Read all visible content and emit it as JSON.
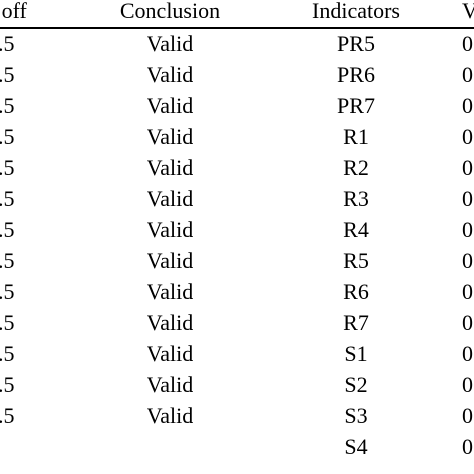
{
  "table": {
    "headers": [
      "t off",
      "Conclusion",
      "Indicators",
      "V"
    ],
    "rows": [
      {
        "cutoff": ".5",
        "conclusion": "Valid",
        "indicator": "PR5",
        "value": "0"
      },
      {
        "cutoff": ".5",
        "conclusion": "Valid",
        "indicator": "PR6",
        "value": "0"
      },
      {
        "cutoff": ".5",
        "conclusion": "Valid",
        "indicator": "PR7",
        "value": "0"
      },
      {
        "cutoff": ".5",
        "conclusion": "Valid",
        "indicator": "R1",
        "value": "0"
      },
      {
        "cutoff": ".5",
        "conclusion": "Valid",
        "indicator": "R2",
        "value": "0"
      },
      {
        "cutoff": ".5",
        "conclusion": "Valid",
        "indicator": "R3",
        "value": "0"
      },
      {
        "cutoff": ".5",
        "conclusion": "Valid",
        "indicator": "R4",
        "value": "0"
      },
      {
        "cutoff": ".5",
        "conclusion": "Valid",
        "indicator": "R5",
        "value": "0"
      },
      {
        "cutoff": ".5",
        "conclusion": "Valid",
        "indicator": "R6",
        "value": "0"
      },
      {
        "cutoff": ".5",
        "conclusion": "Valid",
        "indicator": "R7",
        "value": "0"
      },
      {
        "cutoff": ".5",
        "conclusion": "Valid",
        "indicator": "S1",
        "value": "0"
      },
      {
        "cutoff": ".5",
        "conclusion": "Valid",
        "indicator": "S2",
        "value": "0"
      },
      {
        "cutoff": ".5",
        "conclusion": "Valid",
        "indicator": "S3",
        "value": "0"
      },
      {
        "cutoff": "",
        "conclusion": "",
        "indicator": "S4",
        "value": "0"
      }
    ]
  }
}
